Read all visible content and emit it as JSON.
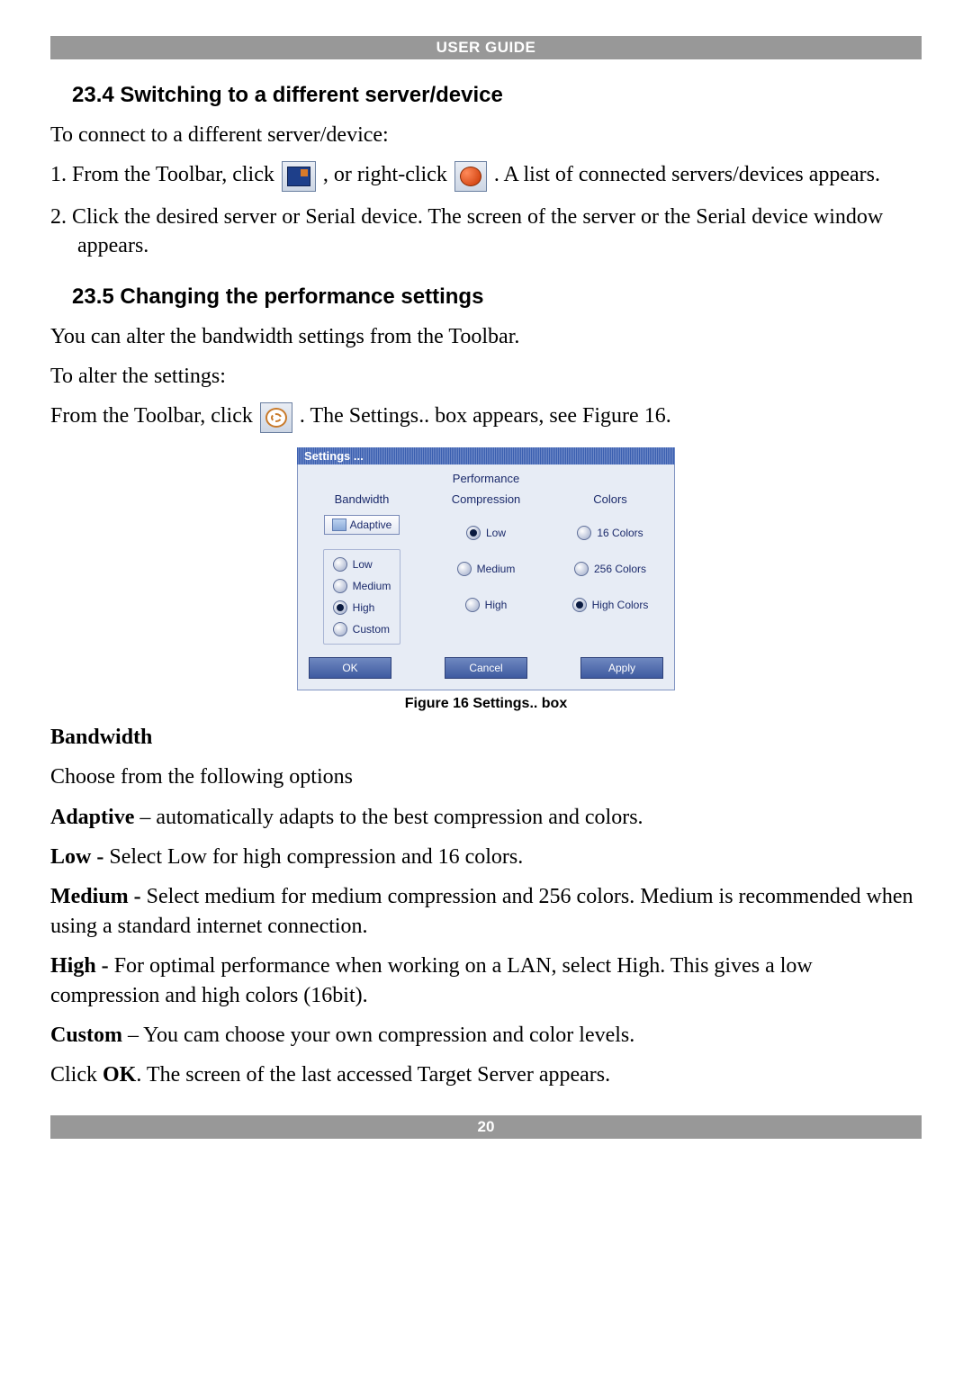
{
  "header": {
    "title": "USER GUIDE"
  },
  "footer": {
    "page_number": "20"
  },
  "section_234": {
    "heading": "23.4 Switching to a different server/device",
    "intro": "To connect to a different server/device:",
    "step1_a": "1. From the Toolbar, click ",
    "step1_b": ", or right-click ",
    "step1_c": ". A list of connected servers/devices appears.",
    "step2": "2. Click the desired server or Serial device. The screen of the server or the Serial device window appears."
  },
  "section_235": {
    "heading": "23.5 Changing the performance settings",
    "line1": "You can alter the bandwidth settings from the Toolbar.",
    "line2": "To alter the settings:",
    "line3_a": "From the Toolbar, click ",
    "line3_b": ". The Settings.. box appears, see Figure 16."
  },
  "dialog": {
    "title": "Settings ...",
    "tab": "Performance",
    "columns": {
      "bandwidth": "Bandwidth",
      "compression": "Compression",
      "colors": "Colors"
    },
    "adaptive": "Adaptive",
    "bandwidth_opts": [
      "Low",
      "Medium",
      "High",
      "Custom"
    ],
    "bandwidth_selected": "High",
    "compression_opts": [
      "Low",
      "Medium",
      "High"
    ],
    "compression_selected": "Low",
    "colors_opts": [
      "16 Colors",
      "256 Colors",
      "High Colors"
    ],
    "colors_selected": "High Colors",
    "buttons": {
      "ok": "OK",
      "cancel": "Cancel",
      "apply": "Apply"
    }
  },
  "figure_caption": "Figure 16 Settings.. box",
  "bandwidth_section": {
    "heading": "Bandwidth",
    "intro": "Choose from the following options",
    "adaptive_label": "Adaptive",
    "adaptive_text": " – automatically adapts to the best compression and colors.",
    "low_label": "Low - ",
    "low_text": "Select Low for high compression and 16 colors.",
    "medium_label": "Medium - ",
    "medium_text": "Select medium for medium compression and 256 colors. Medium is recommended when using a standard internet connection.",
    "high_label": "High - ",
    "high_text": "For optimal performance when working on a LAN, select High. This gives a low compression and high colors (16bit).",
    "custom_label": "Custom",
    "custom_text": " – You cam choose your own compression and color levels.",
    "click_ok_a": "Click ",
    "click_ok_b": "OK",
    "click_ok_c": ". The screen of the last accessed Target Server appears."
  },
  "colors": {
    "header_bg": "#989898",
    "header_fg": "#ffffff",
    "dialog_accent": "#1b2a6b",
    "dialog_bg": "#e7ecf5"
  }
}
